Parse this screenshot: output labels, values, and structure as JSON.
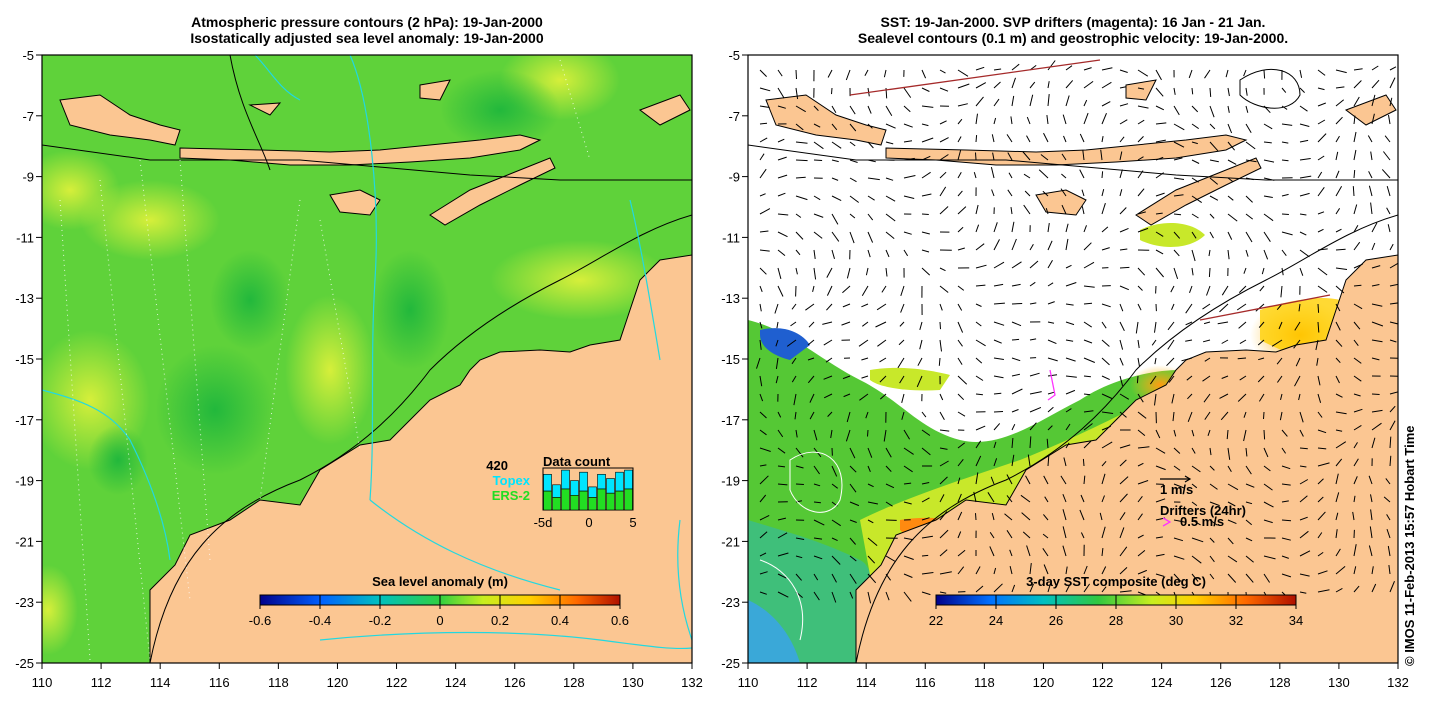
{
  "left_panel": {
    "title_line1": "Atmospheric pressure contours (2 hPa): 19-Jan-2000",
    "title_line2": "Isostatically adjusted sea level anomaly: 19-Jan-2000",
    "colorbar_label": "Sea level anomaly (m)",
    "colorbar_ticks": [
      "-0.6",
      "-0.4",
      "-0.2",
      "0",
      "0.2",
      "0.4",
      "0.6"
    ],
    "inset": {
      "count": "420",
      "topex": "Topex",
      "ers2": "ERS-2",
      "title": "Data count",
      "ticks": [
        "-5d",
        "0",
        "5"
      ],
      "topex_color": "#00e5ff",
      "ers_color": "#22dd22"
    }
  },
  "right_panel": {
    "title_line1": "SST: 19-Jan-2000. SVP drifters (magenta): 16 Jan - 21 Jan.",
    "title_line2": "Sealevel contours (0.1 m) and geostrophic velocity: 19-Jan-2000.",
    "colorbar_label": "3-day SST composite (deg C)",
    "colorbar_ticks": [
      "22",
      "24",
      "26",
      "28",
      "30",
      "32",
      "34"
    ],
    "scale_label": "1 m/s",
    "drifters_label": "Drifters (24hr)",
    "drifter_speed": "0.5 m/s"
  },
  "axes": {
    "lat_ticks": [
      "-5",
      "-7",
      "-9",
      "-11",
      "-13",
      "-15",
      "-17",
      "-19",
      "-21",
      "-23",
      "-25"
    ],
    "lon_ticks": [
      "110",
      "112",
      "114",
      "116",
      "118",
      "120",
      "122",
      "124",
      "126",
      "128",
      "130",
      "132"
    ]
  },
  "credit": "© IMOS 11-Feb-2013 15:57 Hobart Time",
  "colors": {
    "land": "#fbc692",
    "sea_green": "#5fd23a",
    "coast_line": "#000000",
    "contour_cyan": "#22d8e0",
    "drifter_magenta": "#ff33ff"
  }
}
